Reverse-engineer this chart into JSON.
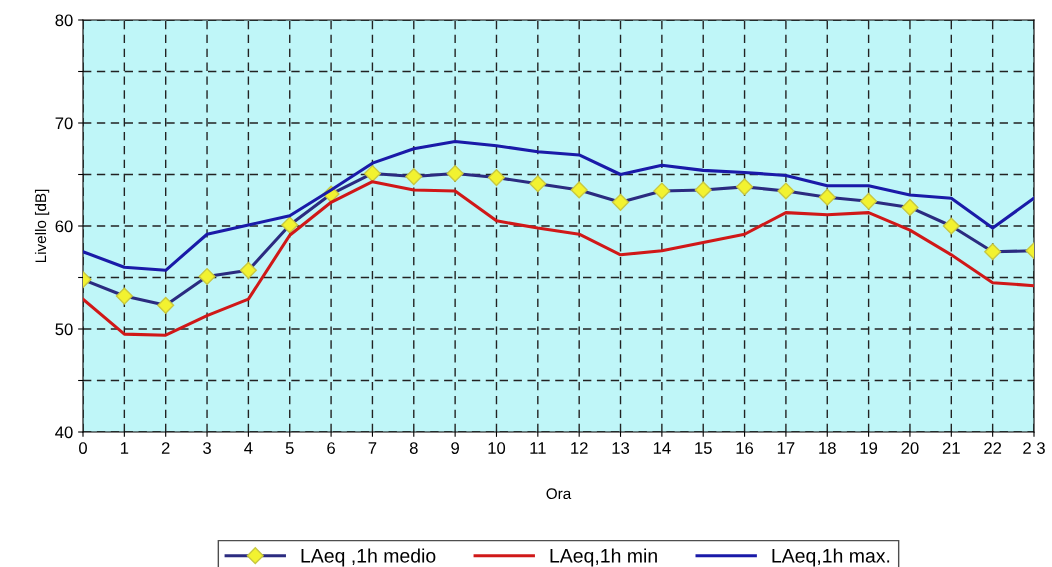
{
  "chart_data": {
    "type": "line",
    "xlabel": "Ora",
    "ylabel": "Livello [dB]",
    "categories": [
      "0",
      "1",
      "2",
      "3",
      "4",
      "5",
      "6",
      "7",
      "8",
      "9",
      "10",
      "11",
      "12",
      "13",
      "14",
      "15",
      "16",
      "17",
      "18",
      "19",
      "20",
      "21",
      "22",
      "2 3"
    ],
    "series": [
      {
        "name": "LAeq ,1h medio",
        "color": "#2b2b80",
        "marker": "diamond",
        "values": [
          54.8,
          53.2,
          52.3,
          55.1,
          55.7,
          60.1,
          63.1,
          65.1,
          64.8,
          65.1,
          64.7,
          64.1,
          63.5,
          62.3,
          63.4,
          63.5,
          63.8,
          63.4,
          62.8,
          62.4,
          61.8,
          60.0,
          57.5,
          57.6
        ]
      },
      {
        "name": "LAeq,1h min",
        "color": "#d01818",
        "values": [
          52.9,
          49.5,
          49.4,
          51.3,
          52.9,
          59.1,
          62.3,
          64.3,
          63.5,
          63.4,
          60.5,
          59.8,
          59.2,
          57.2,
          57.6,
          58.4,
          59.2,
          61.3,
          61.1,
          61.3,
          59.6,
          57.2,
          54.5,
          54.2
        ]
      },
      {
        "name": "LAeq,1h max.",
        "color": "#1a1aa8",
        "values": [
          57.5,
          56.0,
          55.7,
          59.2,
          60.1,
          61.0,
          63.5,
          66.1,
          67.5,
          68.2,
          67.8,
          67.2,
          66.9,
          65.0,
          65.9,
          65.4,
          65.2,
          64.9,
          63.9,
          63.9,
          63.0,
          62.7,
          59.8,
          62.7
        ]
      }
    ],
    "ylim": [
      40,
      80
    ],
    "yticks": [
      40,
      {
        "value": 45,
        "label": null
      },
      50,
      {
        "value": 55,
        "label": null
      },
      60,
      {
        "value": 65,
        "label": null
      },
      70,
      {
        "value": 75,
        "label": null
      },
      80
    ],
    "grid": true,
    "legend": "bottom",
    "line_style": "solid"
  }
}
